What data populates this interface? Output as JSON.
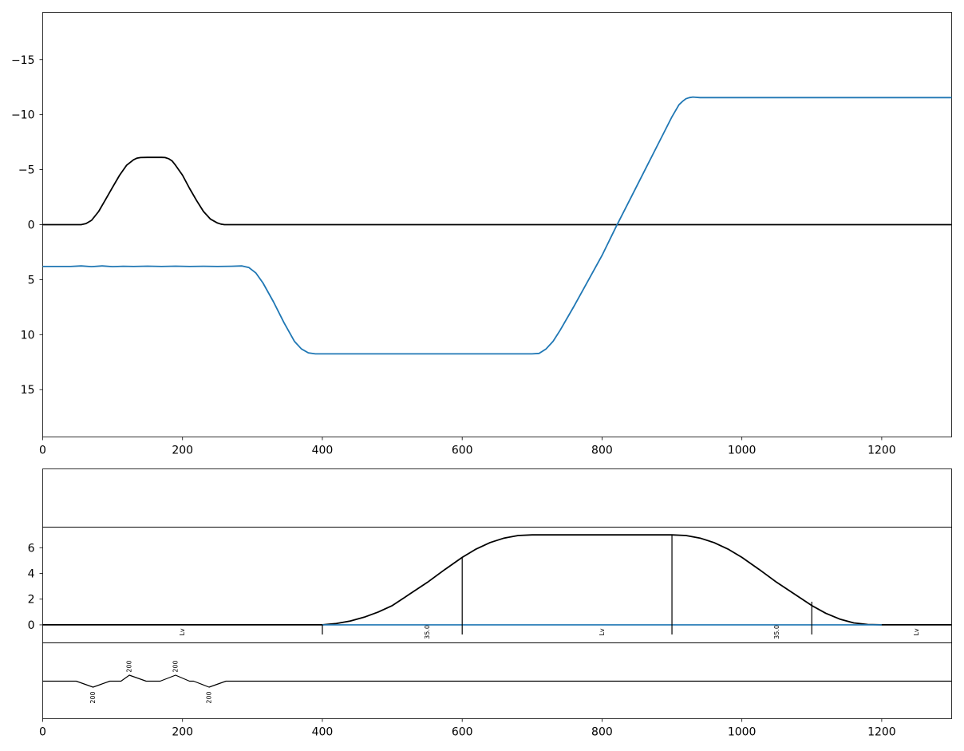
{
  "chart_data": [
    {
      "type": "line",
      "xlim": [
        0,
        1300
      ],
      "ylim": [
        19.3,
        -19.3
      ],
      "y_inverted": true,
      "x_ticks": [
        0,
        200,
        400,
        600,
        800,
        1000,
        1200
      ],
      "y_ticks": [
        -15,
        -10,
        -5,
        0,
        5,
        10,
        15
      ],
      "y_tick_labels": [
        "−15",
        "−10",
        "−5",
        "0",
        "5",
        "10",
        "15"
      ],
      "series": [
        {
          "color": "#000000",
          "x": [
            0,
            55,
            62,
            70,
            80,
            90,
            100,
            110,
            120,
            130,
            135,
            140,
            150,
            160,
            170,
            175,
            180,
            185,
            190,
            200,
            210,
            220,
            230,
            240,
            250,
            255,
            260,
            270,
            1300
          ],
          "y": [
            0,
            0,
            -0.1,
            -0.4,
            -1.2,
            -2.3,
            -3.4,
            -4.5,
            -5.4,
            -5.9,
            -6.05,
            -6.1,
            -6.12,
            -6.12,
            -6.12,
            -6.1,
            -6.0,
            -5.8,
            -5.4,
            -4.5,
            -3.3,
            -2.2,
            -1.2,
            -0.5,
            -0.15,
            -0.05,
            0,
            0,
            0
          ]
        },
        {
          "color": "#1f77b4",
          "x": [
            0,
            40,
            55,
            70,
            85,
            100,
            115,
            130,
            150,
            170,
            190,
            210,
            230,
            250,
            270,
            285,
            295,
            305,
            315,
            330,
            345,
            360,
            370,
            380,
            390,
            400,
            500,
            600,
            700,
            710,
            720,
            730,
            740,
            760,
            780,
            800,
            820,
            840,
            860,
            880,
            900,
            910,
            915,
            920,
            925,
            930,
            940,
            1000,
            1100,
            1200,
            1300
          ],
          "y": [
            3.8,
            3.8,
            3.75,
            3.82,
            3.75,
            3.82,
            3.78,
            3.8,
            3.77,
            3.8,
            3.77,
            3.8,
            3.78,
            3.8,
            3.78,
            3.75,
            3.9,
            4.4,
            5.3,
            7.0,
            8.9,
            10.6,
            11.3,
            11.65,
            11.75,
            11.75,
            11.75,
            11.75,
            11.75,
            11.7,
            11.3,
            10.6,
            9.6,
            7.4,
            5.1,
            2.8,
            0.2,
            -2.3,
            -4.8,
            -7.3,
            -9.8,
            -10.9,
            -11.2,
            -11.45,
            -11.55,
            -11.6,
            -11.55,
            -11.55,
            -11.55,
            -11.55,
            -11.55
          ]
        }
      ]
    },
    {
      "type": "line",
      "xlim": [
        0,
        1300
      ],
      "ylim": [
        -1.4,
        7.6
      ],
      "y_ticks": [
        0,
        2,
        4,
        6
      ],
      "y_tick_labels": [
        "0",
        "2",
        "4",
        "6"
      ],
      "series": [
        {
          "color": "#000000",
          "x": [
            0,
            400,
            420,
            440,
            460,
            480,
            500,
            525,
            550,
            575,
            600,
            620,
            640,
            660,
            680,
            700,
            900,
            920,
            940,
            960,
            980,
            1000,
            1025,
            1050,
            1075,
            1100,
            1120,
            1140,
            1160,
            1180,
            1200,
            1300
          ],
          "y": [
            0,
            0,
            0.1,
            0.3,
            0.6,
            1.0,
            1.5,
            2.4,
            3.3,
            4.3,
            5.25,
            5.9,
            6.4,
            6.75,
            6.95,
            7.0,
            7.0,
            6.95,
            6.75,
            6.4,
            5.9,
            5.25,
            4.3,
            3.3,
            2.4,
            1.5,
            0.9,
            0.45,
            0.15,
            0.03,
            0,
            0
          ]
        },
        {
          "color": "#1f77b4",
          "x": [
            400,
            1200
          ],
          "y": [
            0,
            0
          ]
        }
      ],
      "markers": [
        {
          "x": 400,
          "y_top": 0,
          "y_bottom": -0.75
        },
        {
          "x": 600,
          "y_top": 5.25,
          "y_bottom": -0.75
        },
        {
          "x": 900,
          "y_top": 7.0,
          "y_bottom": -0.75
        },
        {
          "x": 1100,
          "y_top": 1.8,
          "y_bottom": -0.75
        }
      ],
      "segment_labels": [
        {
          "x": 200,
          "text": "Lv"
        },
        {
          "x": 550,
          "text": "35.0"
        },
        {
          "x": 800,
          "text": "Lv"
        },
        {
          "x": 1050,
          "text": "35.0"
        },
        {
          "x": 1250,
          "text": "Lv"
        }
      ]
    },
    {
      "type": "line",
      "xlim": [
        0,
        1300
      ],
      "x_ticks": [
        0,
        200,
        400,
        600,
        800,
        1000,
        1200
      ],
      "series": [
        {
          "color": "#000000",
          "x": [
            0,
            48,
            72,
            96,
            112,
            124,
            148,
            168,
            190,
            210,
            216,
            238,
            262,
            1300
          ],
          "y": [
            0,
            0,
            -1,
            0,
            0,
            1,
            0,
            0,
            1,
            0,
            0,
            -1,
            0,
            0
          ]
        }
      ],
      "curve_labels": [
        {
          "x": 72,
          "text": "200",
          "side": "below"
        },
        {
          "x": 124,
          "text": "200",
          "side": "above"
        },
        {
          "x": 190,
          "text": "200",
          "side": "above"
        },
        {
          "x": 238,
          "text": "200",
          "side": "below"
        }
      ]
    }
  ]
}
